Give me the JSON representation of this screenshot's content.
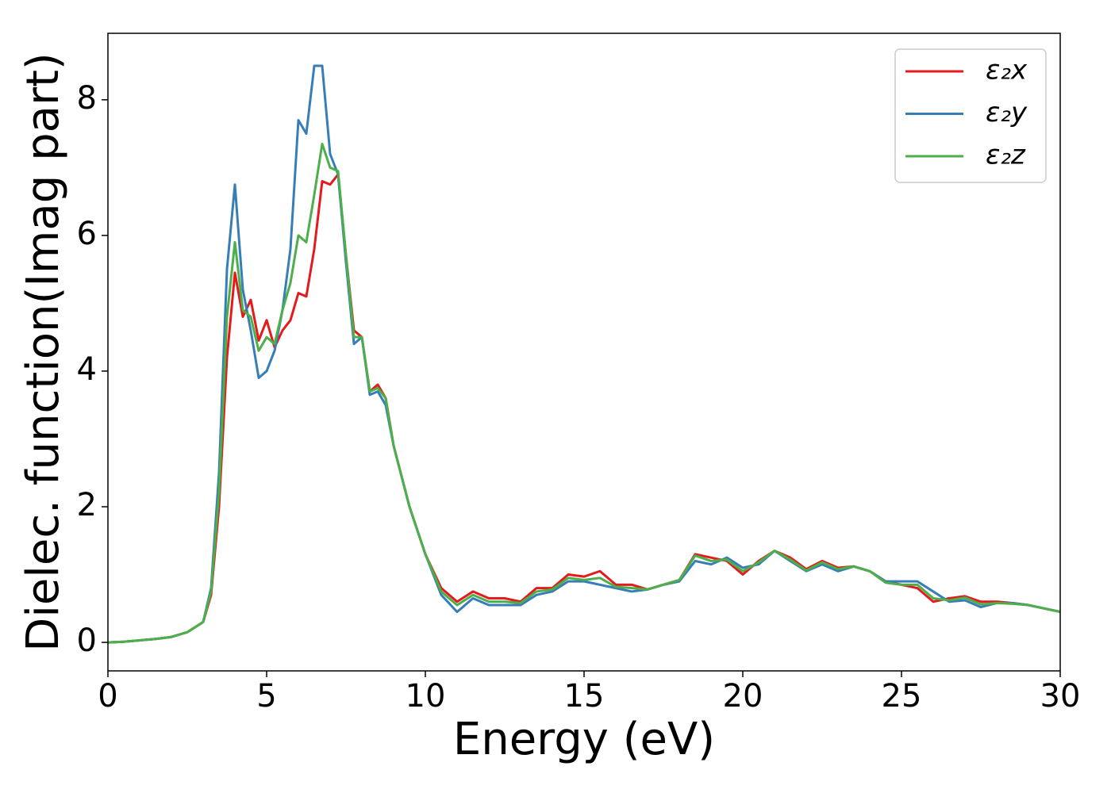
{
  "chart_data": {
    "type": "line",
    "xlabel": "Energy (eV)",
    "ylabel": "Dielec. function(Imag part)",
    "x": [
      0,
      0.5,
      1,
      1.5,
      2,
      2.5,
      3,
      3.25,
      3.5,
      3.75,
      4,
      4.25,
      4.5,
      4.75,
      5,
      5.25,
      5.5,
      5.75,
      6,
      6.25,
      6.5,
      6.75,
      7,
      7.25,
      7.5,
      7.75,
      8,
      8.25,
      8.5,
      8.75,
      9,
      9.5,
      10,
      10.5,
      11,
      11.5,
      12,
      12.5,
      13,
      13.5,
      14,
      14.5,
      15,
      15.5,
      16,
      16.5,
      17,
      17.5,
      18,
      18.5,
      19,
      19.5,
      20,
      20.5,
      21,
      21.5,
      22,
      22.5,
      23,
      23.5,
      24,
      24.5,
      25,
      25.5,
      26,
      26.5,
      27,
      27.5,
      28,
      28.5,
      29,
      29.5,
      30
    ],
    "series": [
      {
        "name": "ε₂x",
        "color": "#e41a1c",
        "values": [
          0,
          0.01,
          0.03,
          0.05,
          0.08,
          0.15,
          0.3,
          0.7,
          2.0,
          4.2,
          5.45,
          4.8,
          5.05,
          4.45,
          4.75,
          4.35,
          4.6,
          4.75,
          5.15,
          5.1,
          5.8,
          6.8,
          6.75,
          6.9,
          5.7,
          4.6,
          4.5,
          3.7,
          3.8,
          3.6,
          2.9,
          2.0,
          1.3,
          0.8,
          0.6,
          0.75,
          0.65,
          0.65,
          0.6,
          0.8,
          0.8,
          1.0,
          0.97,
          1.05,
          0.85,
          0.85,
          0.78,
          0.85,
          0.92,
          1.3,
          1.25,
          1.2,
          1.0,
          1.2,
          1.35,
          1.25,
          1.08,
          1.2,
          1.1,
          1.12,
          1.05,
          0.9,
          0.85,
          0.8,
          0.6,
          0.65,
          0.68,
          0.6,
          0.6,
          0.58,
          0.55,
          0.5,
          0.45
        ]
      },
      {
        "name": "ε₂y",
        "color": "#377eb8",
        "values": [
          0,
          0.01,
          0.03,
          0.05,
          0.08,
          0.15,
          0.3,
          0.8,
          2.5,
          5.5,
          6.75,
          5.2,
          4.6,
          3.9,
          4.0,
          4.3,
          4.9,
          5.8,
          7.7,
          7.5,
          8.5,
          8.5,
          7.2,
          6.9,
          5.6,
          4.4,
          4.5,
          3.65,
          3.7,
          3.5,
          2.9,
          2.0,
          1.3,
          0.7,
          0.45,
          0.65,
          0.55,
          0.55,
          0.55,
          0.7,
          0.75,
          0.9,
          0.9,
          0.85,
          0.8,
          0.75,
          0.78,
          0.85,
          0.9,
          1.2,
          1.15,
          1.25,
          1.1,
          1.15,
          1.35,
          1.2,
          1.05,
          1.15,
          1.05,
          1.12,
          1.05,
          0.9,
          0.9,
          0.9,
          0.75,
          0.6,
          0.62,
          0.52,
          0.58,
          0.58,
          0.55,
          0.5,
          0.45
        ]
      },
      {
        "name": "ε₂z",
        "color": "#4daf4a",
        "values": [
          0,
          0.01,
          0.03,
          0.05,
          0.08,
          0.15,
          0.3,
          0.75,
          2.2,
          4.8,
          5.9,
          4.9,
          4.8,
          4.3,
          4.5,
          4.4,
          4.9,
          5.3,
          6.0,
          5.9,
          6.6,
          7.35,
          7.0,
          6.95,
          5.7,
          4.5,
          4.5,
          3.7,
          3.75,
          3.6,
          2.9,
          2.0,
          1.3,
          0.75,
          0.55,
          0.7,
          0.6,
          0.6,
          0.58,
          0.75,
          0.78,
          0.95,
          0.92,
          0.95,
          0.82,
          0.8,
          0.78,
          0.85,
          0.92,
          1.28,
          1.2,
          1.22,
          1.05,
          1.18,
          1.35,
          1.22,
          1.06,
          1.18,
          1.08,
          1.12,
          1.05,
          0.88,
          0.85,
          0.85,
          0.65,
          0.62,
          0.66,
          0.56,
          0.58,
          0.57,
          0.55,
          0.5,
          0.45
        ]
      }
    ],
    "xlim": [
      0,
      30
    ],
    "xticks": [
      0,
      5,
      10,
      15,
      20,
      25,
      30
    ],
    "ylim": [
      -0.42,
      8.98
    ],
    "yticks": [
      0,
      2,
      4,
      6,
      8
    ],
    "legend": "upper right"
  }
}
